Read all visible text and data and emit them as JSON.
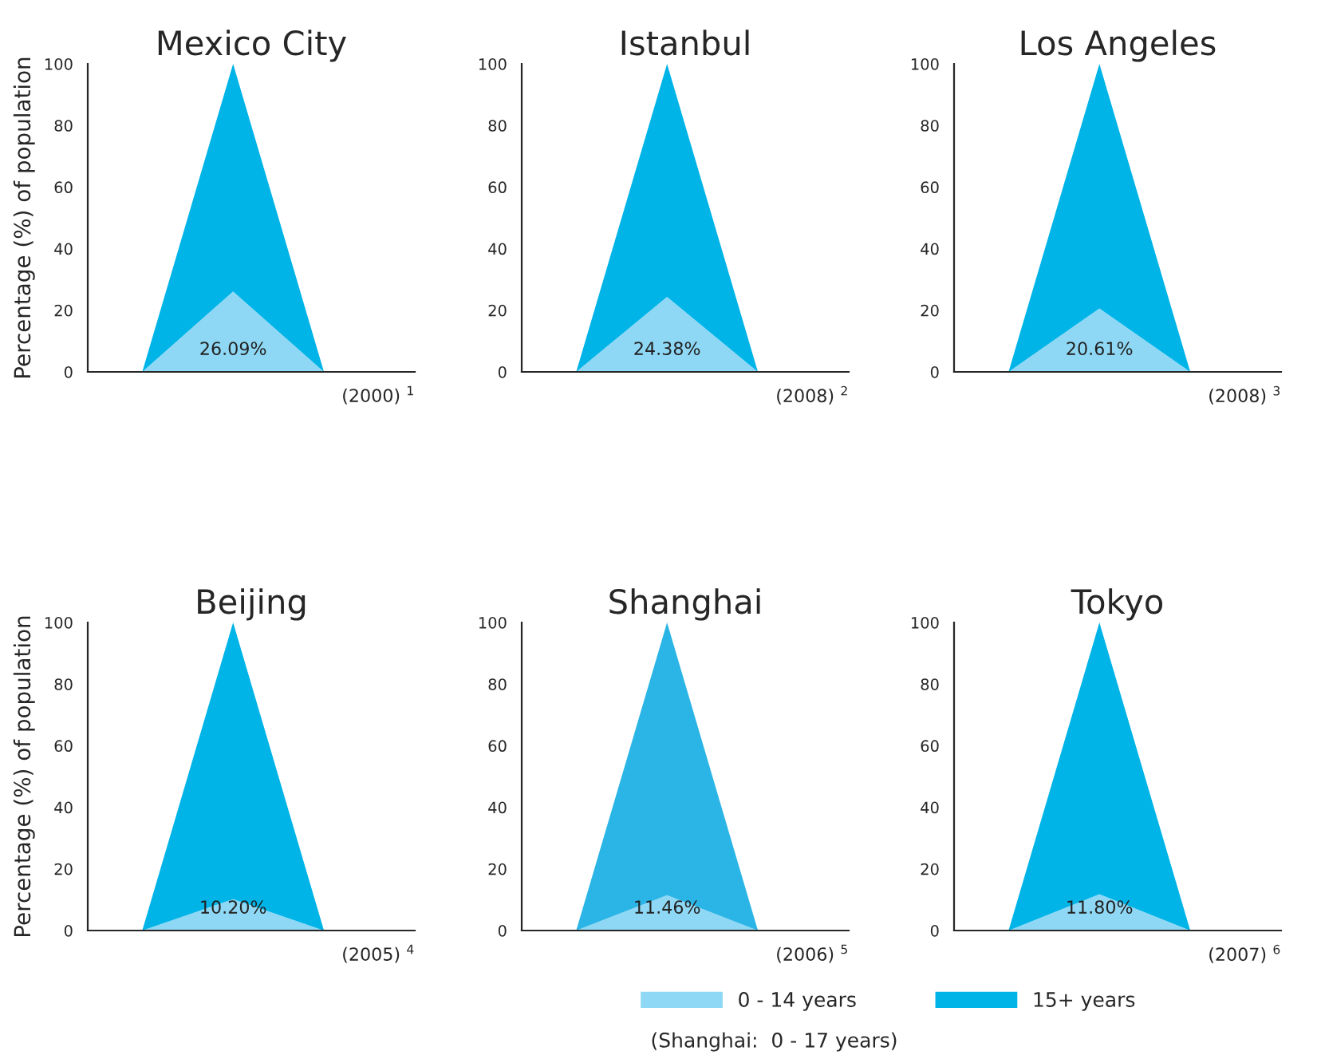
{
  "chart_data": [
    {
      "type": "area",
      "title": "Mexico City",
      "ylabel": "Percentage (%) of population",
      "categories": [
        null,
        null,
        null
      ],
      "stacked": true,
      "ylim": [
        0,
        100
      ],
      "yticks": [
        0,
        20,
        40,
        60,
        80,
        100
      ],
      "annotations": [
        "(2000) $^{1}$"
      ],
      "series": [
        {
          "color": "#8fd8f5",
          "values": [
            0,
            26.09,
            0
          ],
          "value_labels": [
            null,
            "26.09%",
            null
          ]
        },
        {
          "color": "#00b4e8",
          "values": [
            0,
            73.91,
            0
          ]
        }
      ]
    },
    {
      "type": "area",
      "title": "Istanbul",
      "categories": [
        null,
        null,
        null
      ],
      "stacked": true,
      "ylim": [
        0,
        100
      ],
      "yticks": [
        0,
        20,
        40,
        60,
        80,
        100
      ],
      "annotations": [
        "(2008) $^{2}$"
      ],
      "series": [
        {
          "color": "#8fd8f5",
          "values": [
            0,
            24.38,
            0
          ],
          "value_labels": [
            null,
            "24.38%",
            null
          ]
        },
        {
          "color": "#00b4e8",
          "values": [
            0,
            75.62,
            0
          ]
        }
      ]
    },
    {
      "type": "area",
      "title": "Los Angeles",
      "categories": [
        null,
        null,
        null
      ],
      "stacked": true,
      "ylim": [
        0,
        100
      ],
      "yticks": [
        0,
        20,
        40,
        60,
        80,
        100
      ],
      "annotations": [
        "(2008) $^{3}$"
      ],
      "series": [
        {
          "color": "#8fd8f5",
          "values": [
            0,
            20.61,
            0
          ],
          "value_labels": [
            null,
            "20.61%",
            null
          ]
        },
        {
          "color": "#00b4e8",
          "values": [
            0,
            79.39,
            0
          ]
        }
      ]
    },
    {
      "type": "area",
      "title": "Beijing",
      "ylabel": "Percentage (%) of population",
      "categories": [
        null,
        null,
        null
      ],
      "stacked": true,
      "ylim": [
        0,
        100
      ],
      "yticks": [
        0,
        20,
        40,
        60,
        80,
        100
      ],
      "annotations": [
        "(2005) $^{4}$"
      ],
      "series": [
        {
          "color": "#8fd8f5",
          "values": [
            0,
            10.2,
            0
          ],
          "value_labels": [
            null,
            "10.20%",
            null
          ]
        },
        {
          "color": "#00b4e8",
          "values": [
            0,
            89.8,
            0
          ]
        }
      ]
    },
    {
      "type": "area",
      "title": "Shanghai",
      "categories": [
        null,
        null,
        null
      ],
      "stacked": true,
      "ylim": [
        0,
        100
      ],
      "yticks": [
        0,
        20,
        40,
        60,
        80,
        100
      ],
      "annotations": [
        "(2006) $^{5}$"
      ],
      "series": [
        {
          "color": "#8fd8f5",
          "values": [
            0,
            11.46,
            0
          ],
          "value_labels": [
            null,
            "11.46%",
            null
          ]
        },
        {
          "color": "#2bb5e6",
          "values": [
            0,
            88.54,
            0
          ]
        }
      ]
    },
    {
      "type": "area",
      "title": "Tokyo",
      "categories": [
        null,
        null,
        null
      ],
      "stacked": true,
      "ylim": [
        0,
        100
      ],
      "yticks": [
        0,
        20,
        40,
        60,
        80,
        100
      ],
      "legend": "bottom",
      "annotations": [
        "(2007) $^{6}$",
        "(Shanghai:  0 - 17 years)"
      ],
      "series": [
        {
          "name": "0 - 14 years",
          "color": "#8fd8f5",
          "values": [
            0,
            11.8,
            0
          ],
          "value_labels": [
            null,
            "11.80%",
            null
          ]
        },
        {
          "name": "15+ years",
          "color": "#00b4e8",
          "values": [
            0,
            88.2,
            0
          ]
        }
      ]
    }
  ]
}
